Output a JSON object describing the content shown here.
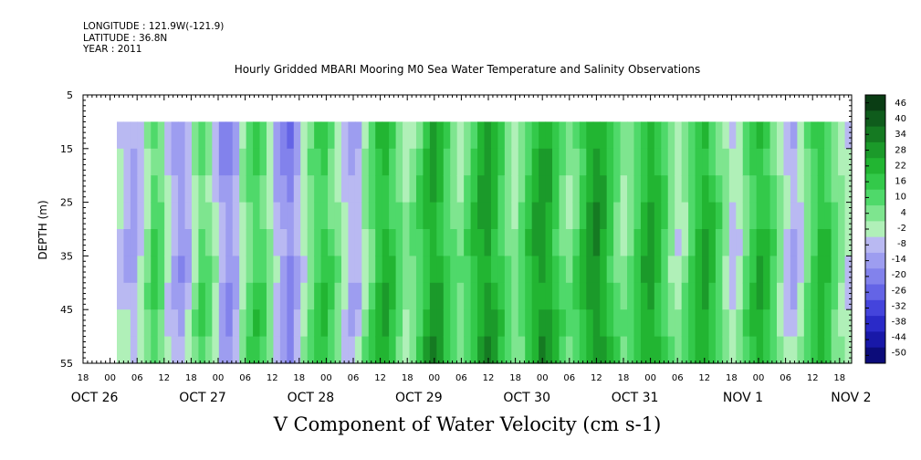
{
  "header": {
    "longitude": "LONGITUDE : 121.9W(-121.9)",
    "latitude": "LATITUDE : 36.8N",
    "year": "YEAR : 2011"
  },
  "chart_data": {
    "type": "heatmap",
    "title": "Hourly Gridded MBARI Mooring M0 Sea Water Temperature and Salinity Observations",
    "variable_label": "V Component of Water Velocity (cm s-1)",
    "ylabel": "DEPTH (m)",
    "y_axis": {
      "range": [
        5,
        55
      ],
      "inverted": true,
      "ticks": [
        5,
        15,
        25,
        35,
        45,
        55
      ],
      "data_range": [
        10,
        55
      ]
    },
    "x_axis": {
      "range_hours_note": "",
      "hour_ticks": [
        "18",
        "00",
        "06",
        "12",
        "18",
        "00",
        "06",
        "12",
        "18",
        "00",
        "06",
        "12",
        "18",
        "00",
        "06",
        "12",
        "18",
        "00",
        "06",
        "12",
        "18",
        "00",
        "06",
        "12",
        "18",
        "00",
        "06",
        "12",
        "18",
        "00",
        "06",
        "12",
        "18"
      ],
      "date_labels": [
        "OCT 26",
        "OCT 27",
        "OCT 28",
        "OCT 29",
        "OCT 30",
        "OCT 31",
        "NOV  1",
        "NOV  2"
      ]
    },
    "colorbar": {
      "labels": [
        "46",
        "40",
        "34",
        "28",
        "22",
        "16",
        "10",
        "4",
        "-2",
        "-8",
        "-14",
        "-20",
        "-26",
        "-32",
        "-38",
        "-44",
        "-50"
      ],
      "colors": [
        "#0a3d14",
        "#0f5c1c",
        "#157a22",
        "#1b9a2a",
        "#22b532",
        "#33c94a",
        "#4fd96a",
        "#7ee58f",
        "#b0f0b8",
        "#b9b9f2",
        "#9d9df0",
        "#8282ec",
        "#6464e6",
        "#4444dc",
        "#2a2ac8",
        "#1818a8",
        "#0c0c7a"
      ]
    },
    "columns_v": [
      -5,
      -8,
      -12,
      -6,
      3,
      12,
      8,
      -4,
      -10,
      -14,
      -9,
      2,
      10,
      6,
      -3,
      -12,
      -16,
      -10,
      0,
      8,
      14,
      10,
      2,
      -8,
      -14,
      -18,
      -10,
      -2,
      6,
      12,
      16,
      10,
      4,
      -4,
      -10,
      -8,
      2,
      10,
      18,
      22,
      16,
      8,
      2,
      6,
      12,
      20,
      26,
      22,
      14,
      8,
      4,
      10,
      18,
      24,
      28,
      22,
      14,
      6,
      2,
      8,
      16,
      24,
      28,
      24,
      16,
      8,
      4,
      10,
      18,
      26,
      30,
      24,
      16,
      8,
      2,
      6,
      14,
      22,
      26,
      20,
      12,
      4,
      -2,
      4,
      12,
      20,
      24,
      18,
      10,
      2,
      -6,
      -2,
      8,
      16,
      22,
      18,
      10,
      2,
      -6,
      -10,
      -4,
      6,
      14,
      20,
      16,
      8,
      2,
      -4
    ]
  }
}
